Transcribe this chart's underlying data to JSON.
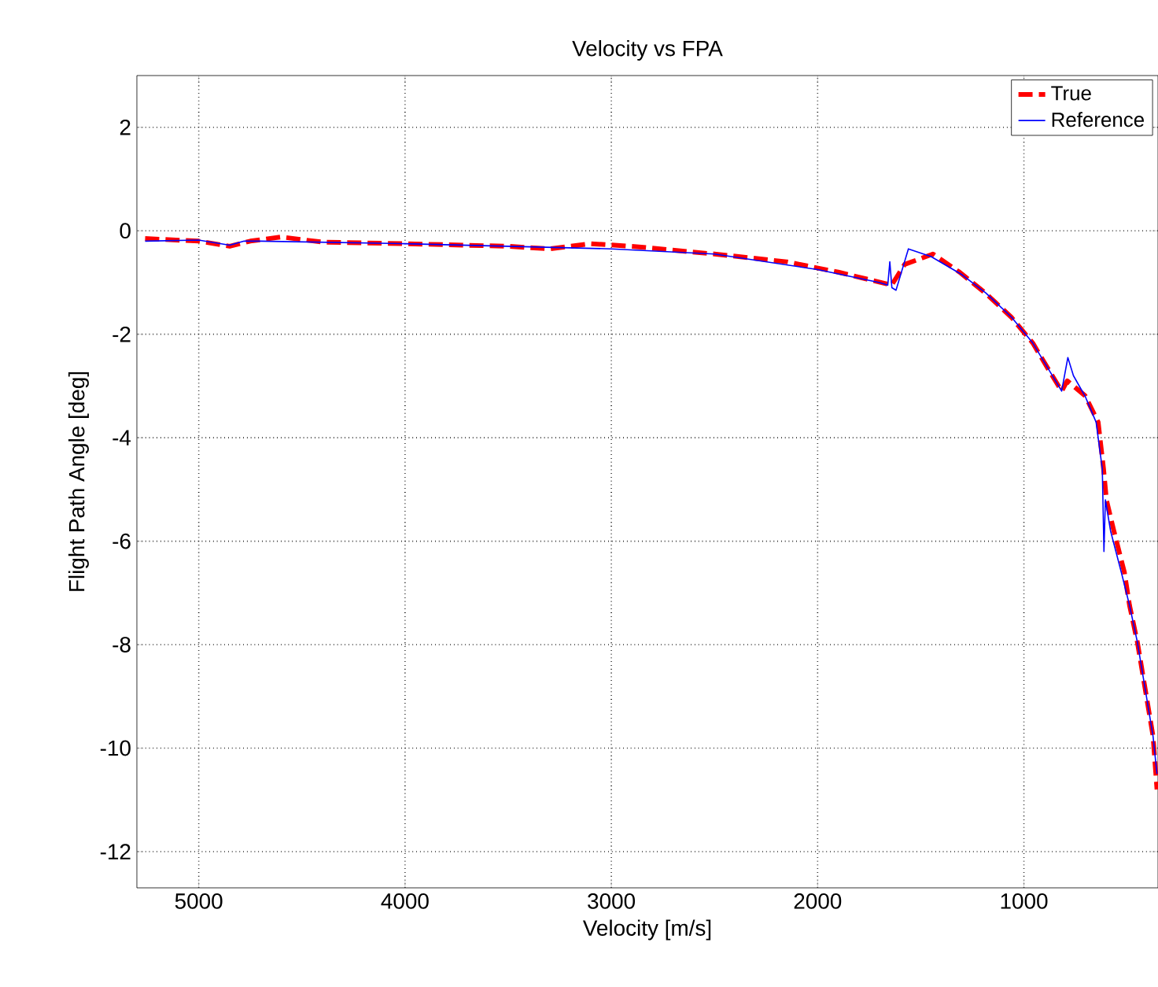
{
  "chart_data": {
    "type": "line",
    "title": "Velocity vs FPA",
    "xlabel": "Velocity  [m/s]",
    "ylabel": "Flight Path Angle [deg]",
    "xlim": [
      5300,
      350
    ],
    "xticks": [
      5000,
      4000,
      3000,
      2000,
      1000
    ],
    "ylim": [
      -12.7,
      3
    ],
    "yticks": [
      -12,
      -10,
      -8,
      -6,
      -4,
      -2,
      0,
      2
    ],
    "grid": true,
    "legend": "top right",
    "series": [
      {
        "name": "True",
        "color": "#ff0000",
        "line_style": "dashed",
        "x": [
          5260,
          5000,
          4850,
          4750,
          4600,
          4400,
          4000,
          3500,
          3300,
          3100,
          2900,
          2500,
          2149,
          1900,
          1641,
          1578,
          1441,
          1312,
          1185,
          1061,
          957,
          881,
          817,
          790,
          703,
          640,
          614,
          600,
          564,
          513,
          488,
          450,
          412,
          374,
          355
        ],
        "values": [
          -0.15,
          -0.2,
          -0.3,
          -0.2,
          -0.12,
          -0.22,
          -0.25,
          -0.3,
          -0.35,
          -0.25,
          -0.3,
          -0.45,
          -0.6,
          -0.8,
          -1.05,
          -0.65,
          -0.45,
          -0.8,
          -1.21,
          -1.67,
          -2.17,
          -2.68,
          -3.1,
          -2.9,
          -3.19,
          -3.7,
          -4.6,
          -5.2,
          -5.8,
          -6.6,
          -7.24,
          -7.95,
          -8.86,
          -9.77,
          -10.8
        ]
      },
      {
        "name": "Reference",
        "color": "#0000ff",
        "line_style": "solid",
        "x": [
          5260,
          5000,
          4850,
          4780,
          4700,
          4000,
          3000,
          2500,
          2000,
          1700,
          1660,
          1650,
          1640,
          1620,
          1560,
          1450,
          1300,
          1185,
          1060,
          957,
          880,
          817,
          787,
          760,
          703,
          650,
          620,
          612,
          605,
          580,
          526,
          488,
          450,
          412,
          374,
          355
        ],
        "values": [
          -0.2,
          -0.18,
          -0.28,
          -0.2,
          -0.2,
          -0.25,
          -0.35,
          -0.45,
          -0.75,
          -1.0,
          -1.05,
          -0.6,
          -1.1,
          -1.15,
          -0.35,
          -0.5,
          -0.85,
          -1.2,
          -1.67,
          -2.17,
          -2.68,
          -3.1,
          -2.45,
          -2.8,
          -3.2,
          -3.7,
          -4.6,
          -6.2,
          -5.2,
          -5.8,
          -6.63,
          -7.24,
          -7.95,
          -8.86,
          -9.77,
          -10.5
        ]
      }
    ]
  }
}
